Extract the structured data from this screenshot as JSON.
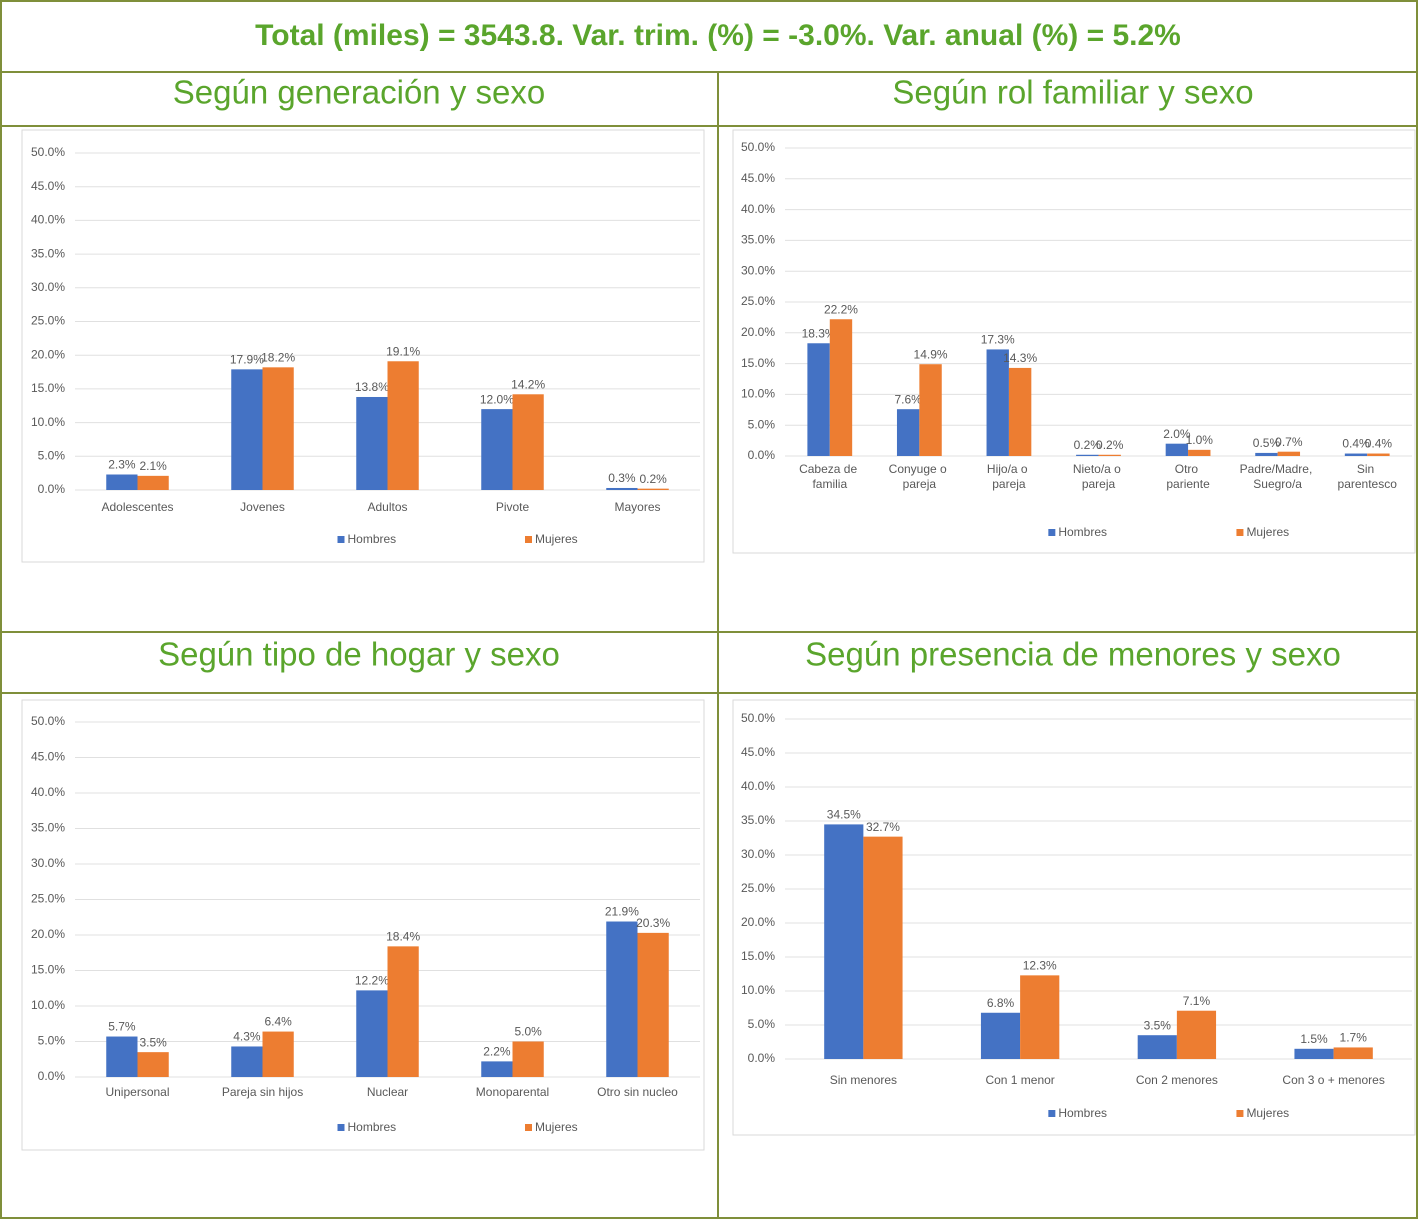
{
  "header": {
    "title": "Total (miles) = 3543.8. Var. trim. (%) = -3.0%. Var. anual (%) = 5.2%"
  },
  "chart_data": [
    {
      "type": "bar",
      "title": "Según generación y sexo",
      "categories": [
        "Adolescentes",
        "Jovenes",
        "Adultos",
        "Pivote",
        "Mayores"
      ],
      "series": [
        {
          "name": "Hombres",
          "color": "#4472c4",
          "values": [
            2.3,
            17.9,
            13.8,
            12.0,
            0.3
          ],
          "value_labels": [
            "2.3%",
            "17.9%",
            "13.8%",
            "12.0%",
            "0.3%"
          ]
        },
        {
          "name": "Mujeres",
          "color": "#ed7d31",
          "values": [
            2.1,
            18.2,
            19.1,
            14.2,
            0.2
          ],
          "value_labels": [
            "2.1%",
            "18.2%",
            "19.1%",
            "14.2%",
            "0.2%"
          ]
        }
      ],
      "ylim": [
        0,
        50
      ],
      "yticks": [
        {
          "value": 0,
          "label": "0.0%"
        },
        {
          "value": 5,
          "label": "5.0%"
        },
        {
          "value": 10,
          "label": "10.0%"
        },
        {
          "value": 15,
          "label": "15.0%"
        },
        {
          "value": 20,
          "label": "20.0%"
        },
        {
          "value": 25,
          "label": "25.0%"
        },
        {
          "value": 30,
          "label": "30.0%"
        },
        {
          "value": 35,
          "label": "35.0%"
        },
        {
          "value": 40,
          "label": "40.0%"
        },
        {
          "value": 45,
          "label": "45.0%"
        },
        {
          "value": 50,
          "label": "50.0%"
        }
      ],
      "grid": true,
      "legend": "bottom"
    },
    {
      "type": "bar",
      "title": "Según rol familiar y sexo",
      "categories": [
        "Cabeza de familia",
        "Conyuge o pareja",
        "Hijo/a o pareja",
        "Nieto/a o pareja",
        "Otro pariente",
        "Padre/Madre, Suegro/a",
        "Sin parentesco"
      ],
      "series": [
        {
          "name": "Hombres",
          "color": "#4472c4",
          "values": [
            18.3,
            7.6,
            17.3,
            0.2,
            2.0,
            0.5,
            0.4
          ],
          "value_labels": [
            "18.3%",
            "7.6%",
            "17.3%",
            "0.2%",
            "2.0%",
            "0.5%",
            "0.4%"
          ]
        },
        {
          "name": "Mujeres",
          "color": "#ed7d31",
          "values": [
            22.2,
            14.9,
            14.3,
            0.2,
            1.0,
            0.7,
            0.4
          ],
          "value_labels": [
            "22.2%",
            "14.9%",
            "14.3%",
            "0.2%",
            "1.0%",
            "0.7%",
            "0.4%"
          ]
        }
      ],
      "ylim": [
        0,
        50
      ],
      "yticks": [
        {
          "value": 0,
          "label": "0.0%"
        },
        {
          "value": 5,
          "label": "5.0%"
        },
        {
          "value": 10,
          "label": "10.0%"
        },
        {
          "value": 15,
          "label": "15.0%"
        },
        {
          "value": 20,
          "label": "20.0%"
        },
        {
          "value": 25,
          "label": "25.0%"
        },
        {
          "value": 30,
          "label": "30.0%"
        },
        {
          "value": 35,
          "label": "35.0%"
        },
        {
          "value": 40,
          "label": "40.0%"
        },
        {
          "value": 45,
          "label": "45.0%"
        },
        {
          "value": 50,
          "label": "50.0%"
        }
      ],
      "grid": true,
      "legend": "bottom"
    },
    {
      "type": "bar",
      "title": "Según tipo de hogar y sexo",
      "categories": [
        "Unipersonal",
        "Pareja sin hijos",
        "Nuclear",
        "Monoparental",
        "Otro sin nucleo"
      ],
      "series": [
        {
          "name": "Hombres",
          "color": "#4472c4",
          "values": [
            5.7,
            4.3,
            12.2,
            2.2,
            21.9
          ],
          "value_labels": [
            "5.7%",
            "4.3%",
            "12.2%",
            "2.2%",
            "21.9%"
          ]
        },
        {
          "name": "Mujeres",
          "color": "#ed7d31",
          "values": [
            3.5,
            6.4,
            18.4,
            5.0,
            20.3
          ],
          "value_labels": [
            "3.5%",
            "6.4%",
            "18.4%",
            "5.0%",
            "20.3%"
          ]
        }
      ],
      "ylim": [
        0,
        50
      ],
      "yticks": [
        {
          "value": 0,
          "label": "0.0%"
        },
        {
          "value": 5,
          "label": "5.0%"
        },
        {
          "value": 10,
          "label": "10.0%"
        },
        {
          "value": 15,
          "label": "15.0%"
        },
        {
          "value": 20,
          "label": "20.0%"
        },
        {
          "value": 25,
          "label": "25.0%"
        },
        {
          "value": 30,
          "label": "30.0%"
        },
        {
          "value": 35,
          "label": "35.0%"
        },
        {
          "value": 40,
          "label": "40.0%"
        },
        {
          "value": 45,
          "label": "45.0%"
        },
        {
          "value": 50,
          "label": "50.0%"
        }
      ],
      "grid": true,
      "legend": "bottom"
    },
    {
      "type": "bar",
      "title": "Según presencia de menores y sexo",
      "categories": [
        "Sin menores",
        "Con 1 menor",
        "Con 2 menores",
        "Con 3 o + menores"
      ],
      "series": [
        {
          "name": "Hombres",
          "color": "#4472c4",
          "values": [
            34.5,
            6.8,
            3.5,
            1.5
          ],
          "value_labels": [
            "34.5%",
            "6.8%",
            "3.5%",
            "1.5%"
          ]
        },
        {
          "name": "Mujeres",
          "color": "#ed7d31",
          "values": [
            32.7,
            12.3,
            7.1,
            1.7
          ],
          "value_labels": [
            "32.7%",
            "12.3%",
            "7.1%",
            "1.7%"
          ]
        }
      ],
      "ylim": [
        0,
        50
      ],
      "yticks": [
        {
          "value": 0,
          "label": "0.0%"
        },
        {
          "value": 5,
          "label": "5.0%"
        },
        {
          "value": 10,
          "label": "10.0%"
        },
        {
          "value": 15,
          "label": "15.0%"
        },
        {
          "value": 20,
          "label": "20.0%"
        },
        {
          "value": 25,
          "label": "25.0%"
        },
        {
          "value": 30,
          "label": "30.0%"
        },
        {
          "value": 35,
          "label": "35.0%"
        },
        {
          "value": 40,
          "label": "40.0%"
        },
        {
          "value": 45,
          "label": "45.0%"
        },
        {
          "value": 50,
          "label": "50.0%"
        }
      ],
      "grid": true,
      "legend": "bottom"
    }
  ]
}
